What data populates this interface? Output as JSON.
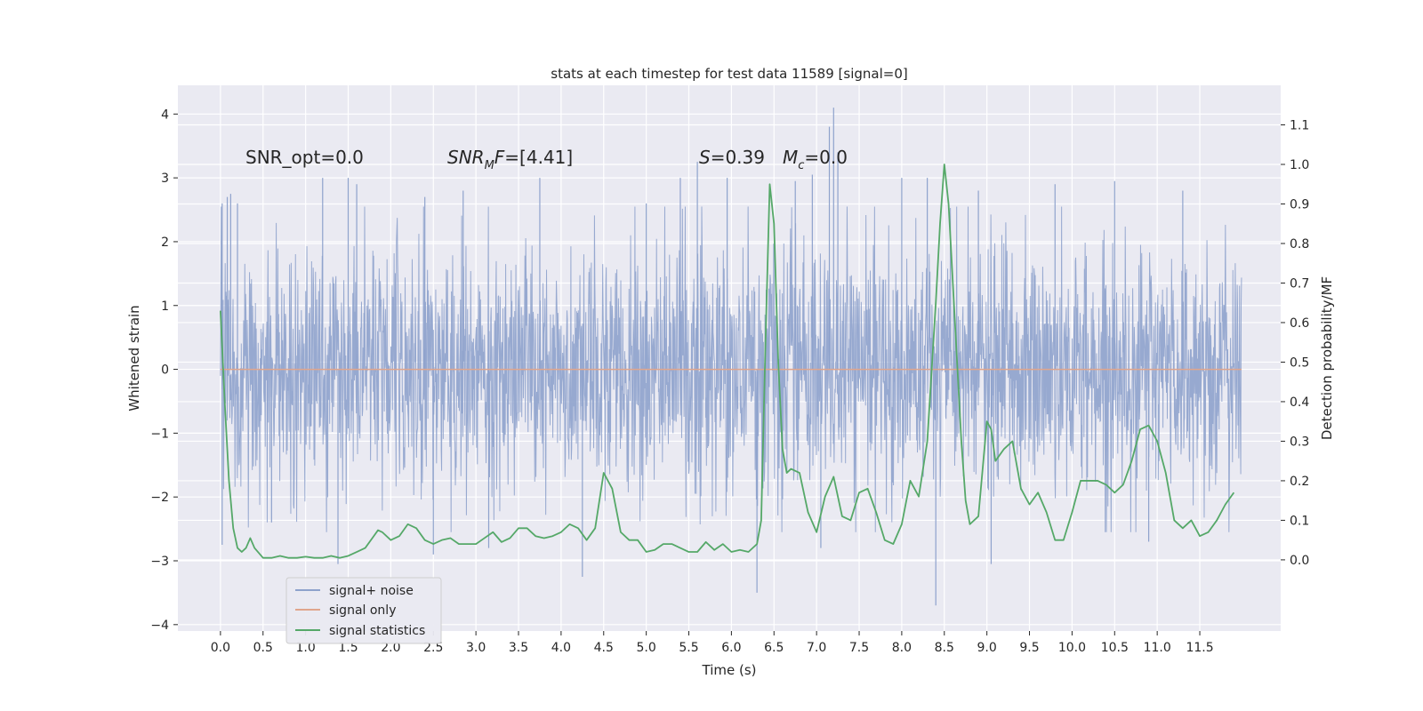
{
  "chart_data": {
    "type": "line",
    "title": "stats at each timestep for test data 11589 [signal=0]",
    "xlabel": "Time (s)",
    "ylabel": "Whitened strain",
    "y2label": "Detection probability/MF",
    "xlim": [
      -0.5,
      12.45
    ],
    "ylim": [
      -4.1,
      4.45
    ],
    "y2lim": [
      -0.18,
      1.2
    ],
    "x_ticks": [
      0.0,
      0.5,
      1.0,
      1.5,
      2.0,
      2.5,
      3.0,
      3.5,
      4.0,
      4.5,
      5.0,
      5.5,
      6.0,
      6.5,
      7.0,
      7.5,
      8.0,
      8.5,
      9.0,
      9.5,
      10.0,
      10.5,
      11.0,
      11.5
    ],
    "x_tick_labels": [
      "0.0",
      "0.5",
      "1.0",
      "1.5",
      "2.0",
      "2.5",
      "3.0",
      "3.5",
      "4.0",
      "4.5",
      "5.0",
      "5.5",
      "6.0",
      "6.5",
      "7.0",
      "7.5",
      "8.0",
      "8.5",
      "9.0",
      "9.5",
      "10.0",
      "10.5",
      "11.0",
      "11.5"
    ],
    "y_ticks": [
      -4,
      -3,
      -2,
      -1,
      0,
      1,
      2,
      3,
      4
    ],
    "y_tick_labels": [
      "−4",
      "−3",
      "−2",
      "−1",
      "0",
      "1",
      "2",
      "3",
      "4"
    ],
    "y2_ticks": [
      0.0,
      0.1,
      0.2,
      0.3,
      0.4,
      0.5,
      0.6,
      0.7,
      0.8,
      0.9,
      1.0,
      1.1
    ],
    "y2_tick_labels": [
      "0.0",
      "0.1",
      "0.2",
      "0.3",
      "0.4",
      "0.5",
      "0.6",
      "0.7",
      "0.8",
      "0.9",
      "1.0",
      "1.1"
    ],
    "grid": true,
    "legend_position": "lower-left",
    "annotations": {
      "snr_opt": "SNR_opt=0.0",
      "snr_mf_base": "SNR",
      "snr_mf_sub": "M",
      "snr_mf_rest": "F=[4.41]",
      "s_label": "S",
      "s_value": "=0.39",
      "mc_base": "M",
      "mc_sub": "c",
      "mc_value": "=0.0"
    },
    "series": [
      {
        "name": "signal+ noise",
        "color": "#8ea2cc",
        "axis": "left",
        "kind": "noise",
        "x_range": [
          0.0,
          11.99
        ],
        "envelope_peaks": [
          {
            "x": 0.02,
            "y": 2.6
          },
          {
            "x": 0.08,
            "y": 2.7
          },
          {
            "x": 0.12,
            "y": 2.75
          },
          {
            "x": 0.2,
            "y": 2.6
          },
          {
            "x": 0.02,
            "y": -2.75
          },
          {
            "x": 0.6,
            "y": -2.4
          },
          {
            "x": 1.2,
            "y": 3.0
          },
          {
            "x": 1.38,
            "y": -3.05
          },
          {
            "x": 1.5,
            "y": 3.0
          },
          {
            "x": 1.6,
            "y": 2.9
          },
          {
            "x": 2.4,
            "y": 2.7
          },
          {
            "x": 2.5,
            "y": -2.9
          },
          {
            "x": 2.85,
            "y": 2.8
          },
          {
            "x": 3.15,
            "y": -2.8
          },
          {
            "x": 3.75,
            "y": 3.0
          },
          {
            "x": 4.25,
            "y": -3.25
          },
          {
            "x": 5.0,
            "y": 2.6
          },
          {
            "x": 5.4,
            "y": 3.0
          },
          {
            "x": 5.6,
            "y": 3.25
          },
          {
            "x": 5.95,
            "y": 3.0
          },
          {
            "x": 6.3,
            "y": -3.5
          },
          {
            "x": 6.75,
            "y": 2.95
          },
          {
            "x": 6.95,
            "y": 3.05
          },
          {
            "x": 7.05,
            "y": -2.8
          },
          {
            "x": 7.15,
            "y": 3.8
          },
          {
            "x": 7.2,
            "y": 4.1
          },
          {
            "x": 7.25,
            "y": 3.4
          },
          {
            "x": 8.0,
            "y": 3.0
          },
          {
            "x": 8.3,
            "y": 3.0
          },
          {
            "x": 8.4,
            "y": -3.7
          },
          {
            "x": 8.9,
            "y": 2.8
          },
          {
            "x": 9.05,
            "y": -3.05
          },
          {
            "x": 9.8,
            "y": 2.9
          },
          {
            "x": 10.5,
            "y": 2.95
          },
          {
            "x": 10.9,
            "y": -2.7
          },
          {
            "x": 11.3,
            "y": 2.8
          }
        ]
      },
      {
        "name": "signal only",
        "color": "#e0a58c",
        "axis": "left",
        "x": [
          0.0,
          11.99
        ],
        "y": [
          0.0,
          0.0
        ]
      },
      {
        "name": "signal statistics",
        "color": "#55a868",
        "axis": "right",
        "x": [
          0.0,
          0.05,
          0.1,
          0.15,
          0.2,
          0.25,
          0.3,
          0.35,
          0.4,
          0.5,
          0.6,
          0.7,
          0.8,
          0.9,
          1.0,
          1.1,
          1.2,
          1.3,
          1.4,
          1.5,
          1.6,
          1.7,
          1.8,
          1.85,
          1.9,
          2.0,
          2.1,
          2.2,
          2.3,
          2.4,
          2.5,
          2.6,
          2.7,
          2.8,
          2.9,
          3.0,
          3.1,
          3.2,
          3.3,
          3.4,
          3.5,
          3.6,
          3.7,
          3.8,
          3.9,
          4.0,
          4.1,
          4.2,
          4.3,
          4.4,
          4.5,
          4.6,
          4.7,
          4.8,
          4.9,
          5.0,
          5.1,
          5.2,
          5.3,
          5.4,
          5.5,
          5.6,
          5.7,
          5.8,
          5.9,
          6.0,
          6.1,
          6.2,
          6.3,
          6.35,
          6.4,
          6.45,
          6.5,
          6.55,
          6.6,
          6.65,
          6.7,
          6.8,
          6.9,
          7.0,
          7.1,
          7.2,
          7.3,
          7.4,
          7.5,
          7.6,
          7.7,
          7.8,
          7.9,
          8.0,
          8.1,
          8.2,
          8.3,
          8.4,
          8.45,
          8.5,
          8.55,
          8.6,
          8.65,
          8.7,
          8.75,
          8.8,
          8.9,
          9.0,
          9.05,
          9.1,
          9.2,
          9.3,
          9.4,
          9.5,
          9.6,
          9.7,
          9.8,
          9.9,
          10.0,
          10.1,
          10.2,
          10.3,
          10.4,
          10.5,
          10.6,
          10.7,
          10.8,
          10.9,
          11.0,
          11.1,
          11.2,
          11.3,
          11.4,
          11.5,
          11.6,
          11.7,
          11.8,
          11.9
        ],
        "y": [
          0.63,
          0.4,
          0.2,
          0.08,
          0.03,
          0.02,
          0.03,
          0.055,
          0.03,
          0.005,
          0.005,
          0.01,
          0.005,
          0.005,
          0.008,
          0.005,
          0.005,
          0.01,
          0.005,
          0.01,
          0.02,
          0.03,
          0.06,
          0.075,
          0.07,
          0.05,
          0.06,
          0.09,
          0.08,
          0.05,
          0.04,
          0.05,
          0.055,
          0.04,
          0.04,
          0.04,
          0.055,
          0.07,
          0.045,
          0.055,
          0.08,
          0.08,
          0.06,
          0.055,
          0.06,
          0.07,
          0.09,
          0.08,
          0.05,
          0.08,
          0.22,
          0.18,
          0.07,
          0.05,
          0.05,
          0.02,
          0.025,
          0.04,
          0.04,
          0.03,
          0.02,
          0.02,
          0.045,
          0.025,
          0.04,
          0.02,
          0.025,
          0.02,
          0.04,
          0.1,
          0.55,
          0.95,
          0.85,
          0.5,
          0.28,
          0.22,
          0.23,
          0.22,
          0.12,
          0.07,
          0.16,
          0.21,
          0.11,
          0.1,
          0.17,
          0.18,
          0.12,
          0.05,
          0.04,
          0.09,
          0.2,
          0.16,
          0.3,
          0.65,
          0.85,
          1.0,
          0.9,
          0.7,
          0.5,
          0.3,
          0.15,
          0.09,
          0.11,
          0.35,
          0.33,
          0.25,
          0.28,
          0.3,
          0.18,
          0.14,
          0.17,
          0.12,
          0.05,
          0.05,
          0.12,
          0.2,
          0.2,
          0.2,
          0.19,
          0.17,
          0.19,
          0.25,
          0.33,
          0.34,
          0.3,
          0.22,
          0.1,
          0.08,
          0.1,
          0.06,
          0.07,
          0.1,
          0.14,
          0.17
        ]
      }
    ]
  }
}
